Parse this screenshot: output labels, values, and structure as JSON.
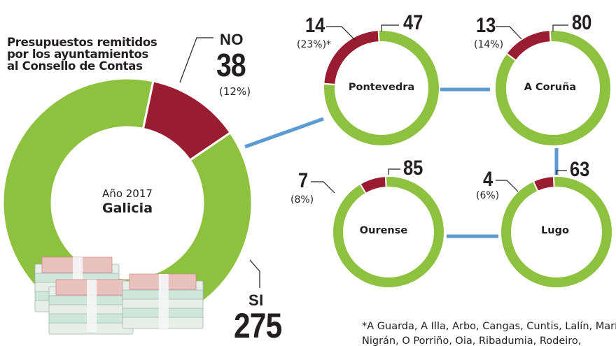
{
  "title": [
    "Presupuestos remitidos",
    "por los ayuntamientos",
    "al Consello de Contas"
  ],
  "colors": {
    "yes": "#8dc13f",
    "no": "#9a1c31",
    "connector": "#5b9bd3"
  },
  "chart_data": [
    {
      "type": "pie",
      "donut": true,
      "year_label": "Año 2017",
      "name": "Galicia",
      "categories": [
        "NO",
        "SI"
      ],
      "values": [
        38,
        275
      ],
      "no_pct": "(12%)",
      "no_label": "NO",
      "si_label": "SI",
      "no_value": "38",
      "si_value": "275"
    },
    {
      "type": "pie",
      "donut": true,
      "name": "Pontevedra",
      "values": [
        14,
        47
      ],
      "no_value": "14",
      "si_value": "47",
      "no_pct": "(23%)*"
    },
    {
      "type": "pie",
      "donut": true,
      "name": "A Coruña",
      "values": [
        13,
        80
      ],
      "no_value": "13",
      "si_value": "80",
      "no_pct": "(14%)"
    },
    {
      "type": "pie",
      "donut": true,
      "name": "Ourense",
      "values": [
        7,
        85
      ],
      "no_value": "7",
      "si_value": "85",
      "no_pct": "(8%)"
    },
    {
      "type": "pie",
      "donut": true,
      "name": "Lugo",
      "values": [
        4,
        63
      ],
      "no_value": "4",
      "si_value": "63",
      "no_pct": "(6%)"
    }
  ],
  "footnote": [
    "*A Guarda, A Illa, Arbo, Cangas, Cuntis, Lalín, Marín,",
    "Nigrán, O Porriño, Oia, Ribadumia, Rodeiro,"
  ]
}
